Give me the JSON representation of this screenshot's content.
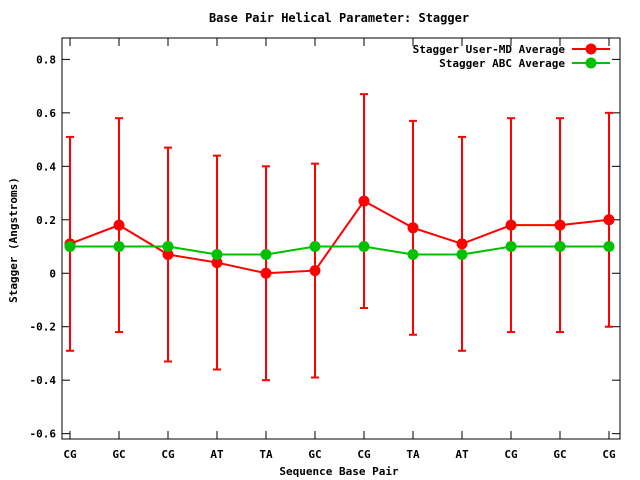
{
  "chart_data": {
    "type": "line",
    "title": "Base Pair Helical Parameter: Stagger",
    "xlabel": "Sequence Base Pair",
    "ylabel": "Stagger (Angstroms)",
    "categories": [
      "CG",
      "GC",
      "CG",
      "AT",
      "TA",
      "GC",
      "CG",
      "TA",
      "AT",
      "CG",
      "GC",
      "CG"
    ],
    "ylim": [
      -0.62,
      0.88
    ],
    "yticks": [
      -0.6,
      -0.4,
      -0.2,
      0,
      0.2,
      0.4,
      0.6,
      0.8
    ],
    "ytick_labels": [
      "-0.6",
      "-0.4",
      "-0.2",
      "0",
      "0.2",
      "0.4",
      "0.6",
      "0.8"
    ],
    "grid": false,
    "legend_position": "top-right",
    "series": [
      {
        "name": "Stagger User-MD Average",
        "color": "#ff0000",
        "values": [
          0.11,
          0.18,
          0.07,
          0.04,
          0.0,
          0.01,
          0.27,
          0.17,
          0.11,
          0.18,
          0.18,
          0.2
        ],
        "error_low": [
          -0.29,
          -0.22,
          -0.33,
          -0.36,
          -0.4,
          -0.39,
          -0.13,
          -0.23,
          -0.29,
          -0.22,
          -0.22,
          -0.2
        ],
        "error_high": [
          0.51,
          0.58,
          0.47,
          0.44,
          0.4,
          0.41,
          0.67,
          0.57,
          0.51,
          0.58,
          0.58,
          0.6
        ]
      },
      {
        "name": "Stagger ABC Average",
        "color": "#00c000",
        "values": [
          0.1,
          0.1,
          0.1,
          0.07,
          0.07,
          0.1,
          0.1,
          0.07,
          0.07,
          0.1,
          0.1,
          0.1
        ]
      }
    ]
  }
}
